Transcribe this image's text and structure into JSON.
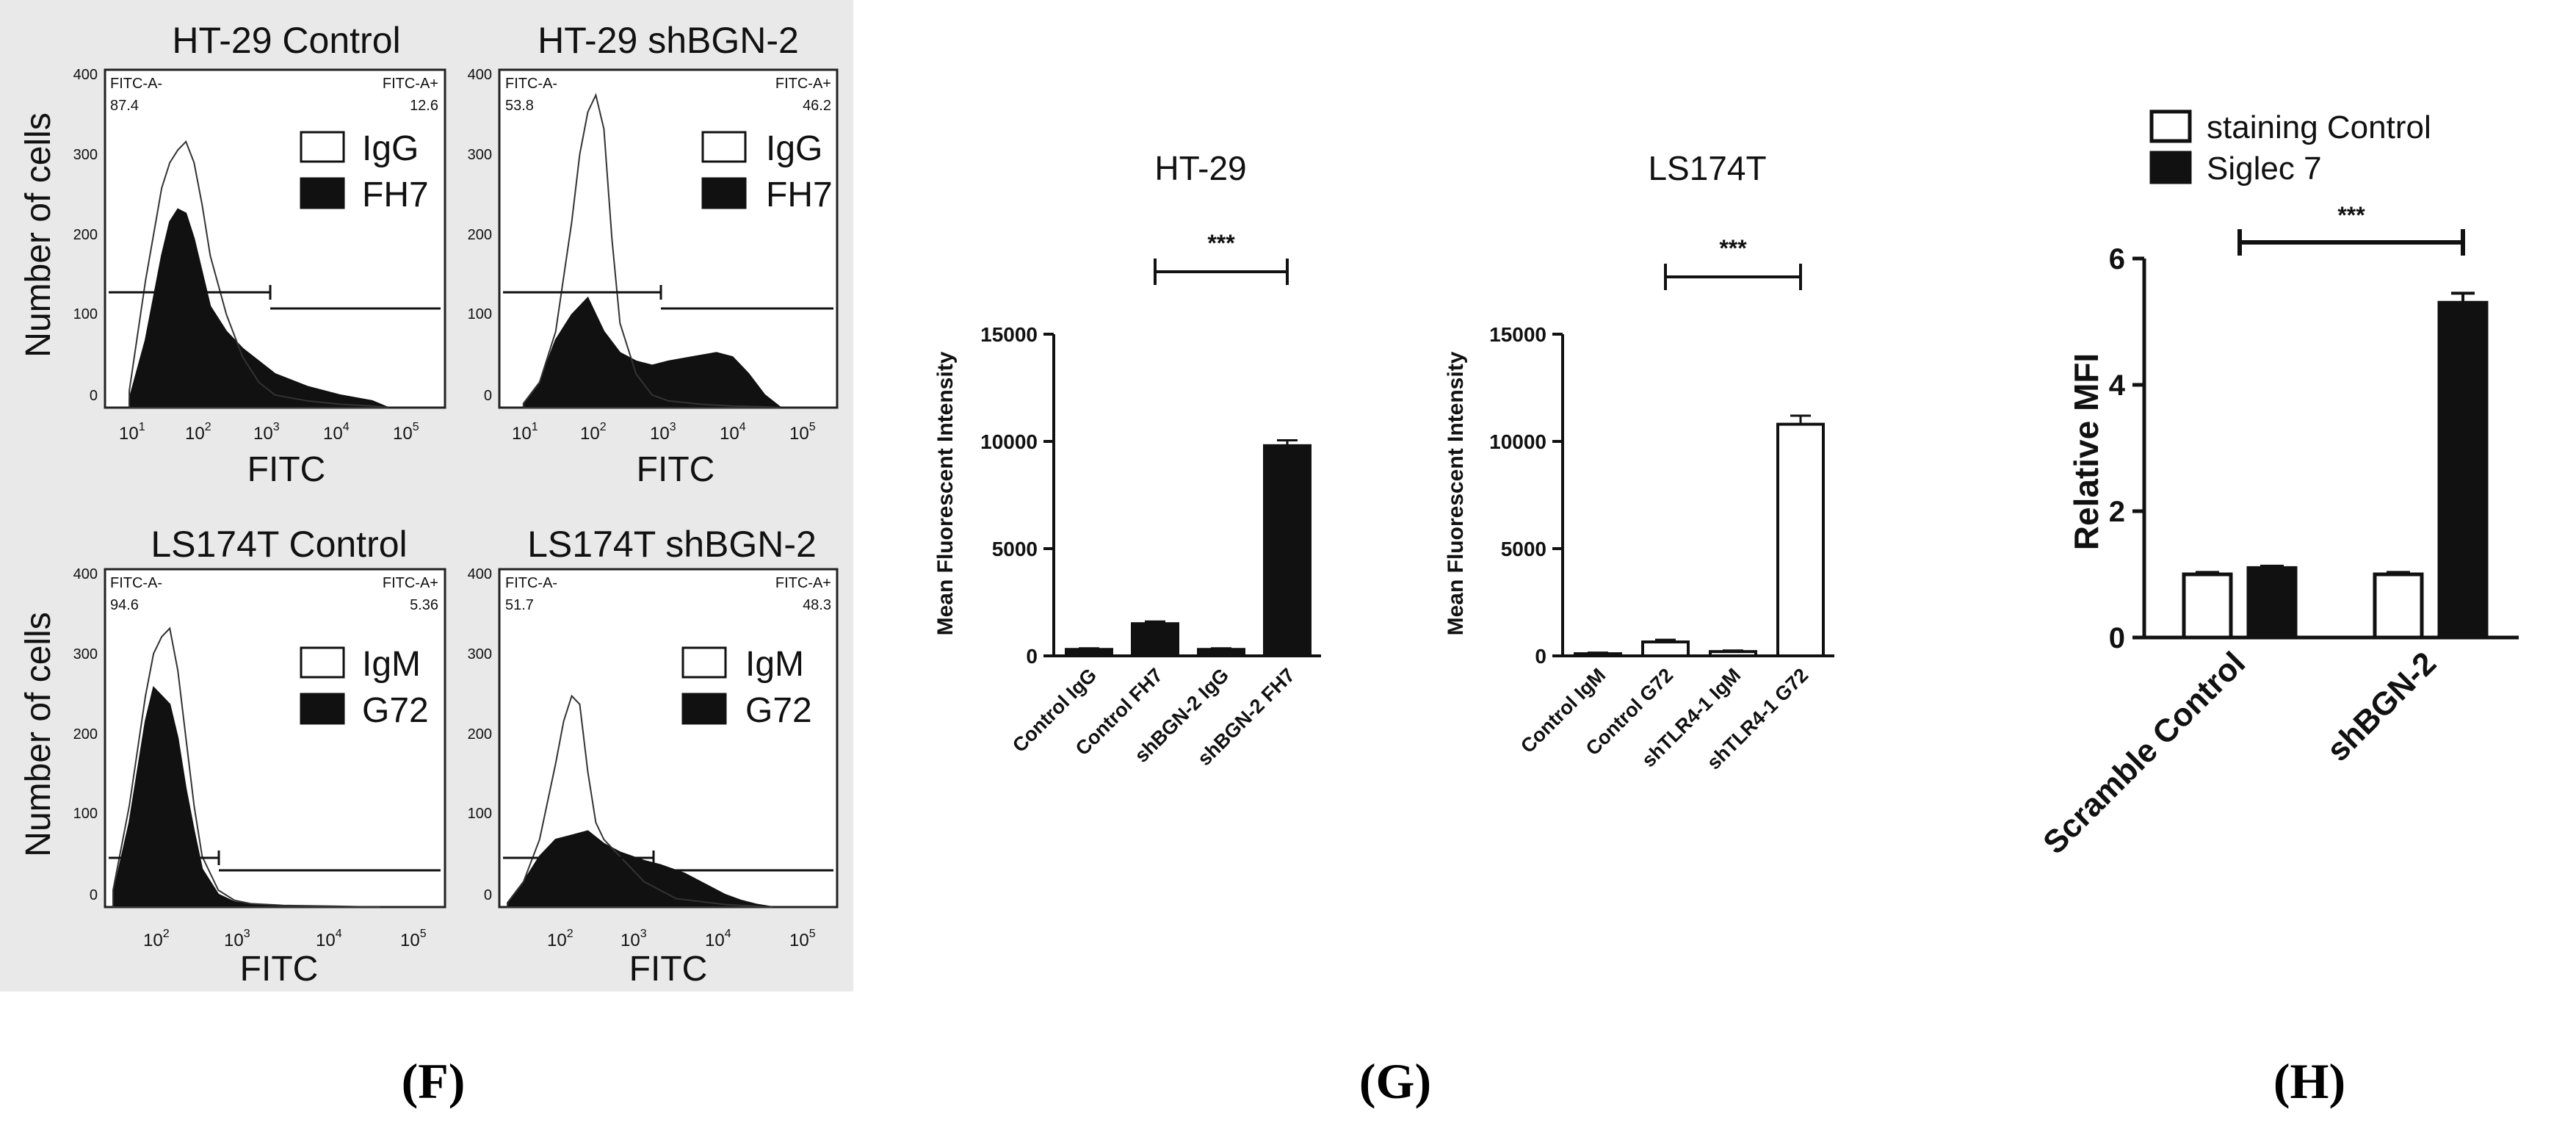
{
  "chart_data": [
    {
      "panel": "F",
      "type": "histogram",
      "ylabel": "Number of cells",
      "ylim": [
        0,
        400
      ],
      "yticks": [
        0,
        100,
        200,
        300,
        400
      ],
      "xticks": [
        "10",
        "1",
        "10",
        "2",
        "10",
        "3",
        "10",
        "4",
        "10",
        "5"
      ],
      "subplots": [
        {
          "title": "HT-29 Control",
          "xlabel": "FITC",
          "gate_left": {
            "label": "FITC-A-",
            "value": "87.4"
          },
          "gate_right": {
            "label": "FITC-A+",
            "value": "12.6"
          },
          "legend": [
            "IgG",
            "FH7"
          ],
          "series": [
            {
              "name": "IgG",
              "x": [
                1.4,
                1.6,
                1.8,
                1.9,
                2.0,
                2.1,
                2.2,
                2.3,
                2.4,
                2.6,
                2.8,
                3.0,
                3.2,
                3.6,
                4.0,
                4.4,
                4.6
              ],
              "y": [
                20,
                150,
                260,
                290,
                305,
                315,
                290,
                240,
                180,
                110,
                60,
                30,
                15,
                8,
                4,
                2,
                0
              ]
            },
            {
              "name": "FH7",
              "x": [
                1.4,
                1.6,
                1.8,
                1.9,
                2.0,
                2.1,
                2.2,
                2.3,
                2.4,
                2.6,
                2.8,
                3.0,
                3.2,
                3.6,
                4.0,
                4.4,
                4.6
              ],
              "y": [
                10,
                80,
                180,
                220,
                235,
                230,
                200,
                160,
                120,
                90,
                70,
                55,
                40,
                25,
                15,
                8,
                0
              ]
            }
          ]
        },
        {
          "title": "HT-29 shBGN-2",
          "xlabel": "FITC",
          "gate_left": {
            "label": "FITC-A-",
            "value": "53.8"
          },
          "gate_right": {
            "label": "FITC-A+",
            "value": "46.2"
          },
          "legend": [
            "IgG",
            "FH7"
          ],
          "series": [
            {
              "name": "IgG",
              "x": [
                1.4,
                1.6,
                1.8,
                2.0,
                2.1,
                2.2,
                2.3,
                2.4,
                2.5,
                2.6,
                2.8,
                3.0,
                3.2,
                3.6,
                4.0,
                4.4,
                4.6
              ],
              "y": [
                5,
                30,
                90,
                220,
                300,
                350,
                370,
                330,
                200,
                100,
                40,
                15,
                8,
                4,
                2,
                1,
                0
              ]
            },
            {
              "name": "FH7",
              "x": [
                1.4,
                1.6,
                1.8,
                2.0,
                2.2,
                2.3,
                2.4,
                2.6,
                2.8,
                3.0,
                3.2,
                3.5,
                3.8,
                4.0,
                4.2,
                4.4,
                4.6
              ],
              "y": [
                5,
                30,
                80,
                110,
                130,
                110,
                90,
                65,
                55,
                50,
                55,
                60,
                65,
                60,
                40,
                15,
                0
              ]
            }
          ]
        },
        {
          "title": "LS174T Control",
          "xlabel": "FITC",
          "gate_left": {
            "label": "FITC-A-",
            "value": "94.6"
          },
          "gate_right": {
            "label": "FITC-A+",
            "value": "5.36"
          },
          "legend": [
            "IgM",
            "G72"
          ],
          "series": [
            {
              "name": "IgM",
              "x": [
                1.3,
                1.5,
                1.7,
                1.8,
                1.9,
                2.0,
                2.1,
                2.2,
                2.3,
                2.4,
                2.6,
                2.8,
                3.0,
                3.4,
                4.0,
                4.6
              ],
              "y": [
                20,
                120,
                250,
                300,
                320,
                330,
                280,
                200,
                120,
                60,
                20,
                8,
                4,
                2,
                1,
                0
              ]
            },
            {
              "name": "G72",
              "x": [
                1.3,
                1.5,
                1.7,
                1.8,
                1.9,
                2.0,
                2.1,
                2.2,
                2.3,
                2.4,
                2.6,
                2.8,
                3.0,
                3.4,
                4.0,
                4.6
              ],
              "y": [
                15,
                100,
                220,
                260,
                250,
                240,
                200,
                140,
                90,
                45,
                15,
                6,
                3,
                1,
                0,
                0
              ]
            }
          ]
        },
        {
          "title": "LS174T shBGN-2",
          "xlabel": "FITC",
          "gate_left": {
            "label": "FITC-A-",
            "value": "51.7"
          },
          "gate_right": {
            "label": "FITC-A+",
            "value": "48.3"
          },
          "legend": [
            "IgM",
            "G72"
          ],
          "series": [
            {
              "name": "IgM",
              "x": [
                1.3,
                1.5,
                1.7,
                1.9,
                2.0,
                2.1,
                2.2,
                2.3,
                2.4,
                2.5,
                2.6,
                2.8,
                3.0,
                3.4,
                4.0,
                4.6
              ],
              "y": [
                5,
                30,
                80,
                170,
                220,
                250,
                240,
                160,
                100,
                80,
                70,
                50,
                30,
                10,
                3,
                0
              ]
            },
            {
              "name": "G72",
              "x": [
                1.3,
                1.5,
                1.7,
                1.9,
                2.1,
                2.3,
                2.5,
                2.7,
                3.0,
                3.2,
                3.5,
                3.8,
                4.0,
                4.2,
                4.4,
                4.6
              ],
              "y": [
                5,
                30,
                60,
                80,
                85,
                90,
                75,
                65,
                55,
                50,
                40,
                25,
                15,
                8,
                3,
                0
              ]
            }
          ]
        }
      ]
    },
    {
      "panel": "G",
      "type": "bar",
      "ylabel": "Mean Fluorescent Intensity",
      "ylim": [
        0,
        15000
      ],
      "yticks": [
        0,
        5000,
        10000,
        15000
      ],
      "subplots": [
        {
          "title": "HT-29",
          "categories": [
            "Control IgG",
            "Control FH7",
            "shBGN-2 IgG",
            "shBGN-2 FH7"
          ],
          "values": [
            300,
            1500,
            300,
            9800
          ],
          "errors": [
            50,
            100,
            50,
            250
          ],
          "fills": [
            "#111111",
            "#111111",
            "#111111",
            "#111111"
          ],
          "significance": {
            "from": 1,
            "to": 3,
            "label": "***"
          }
        },
        {
          "title": "LS174T",
          "categories": [
            "Control IgM",
            "Control G72",
            "shTLR4-1 IgM",
            "shTLR4-1 G72"
          ],
          "values": [
            100,
            650,
            200,
            10800
          ],
          "errors": [
            50,
            100,
            50,
            400
          ],
          "fills": [
            "#ffffff",
            "#ffffff",
            "#ffffff",
            "#ffffff"
          ],
          "significance": {
            "from": 1,
            "to": 3,
            "label": "***"
          }
        }
      ]
    },
    {
      "panel": "H",
      "type": "bar",
      "ylabel": "Relative MFI",
      "ylim": [
        0,
        6
      ],
      "yticks": [
        0,
        2,
        4,
        6
      ],
      "categories": [
        "Scramble Control",
        "shBGN-2"
      ],
      "series": [
        {
          "name": "staining Control",
          "values": [
            1.0,
            1.0
          ],
          "errors": [
            0.03,
            0.03
          ],
          "fill": "#ffffff"
        },
        {
          "name": "Siglec 7",
          "values": [
            1.1,
            5.3
          ],
          "errors": [
            0.03,
            0.15
          ],
          "fill": "#111111"
        }
      ],
      "significance": {
        "label": "***"
      }
    }
  ],
  "panel_labels": {
    "F": "(F)",
    "G": "(G)",
    "H": "(H)"
  }
}
